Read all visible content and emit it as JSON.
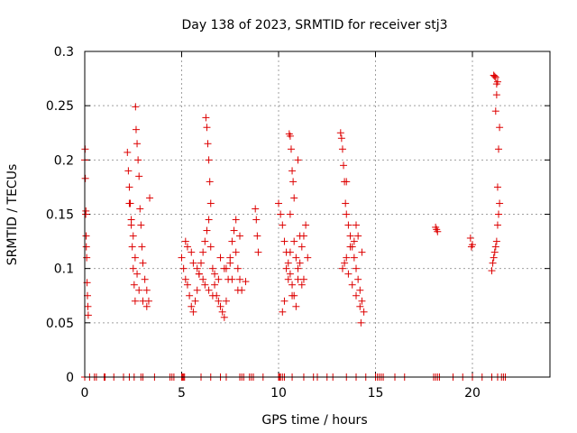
{
  "chart_data": {
    "type": "scatter",
    "title": "Day 138 of 2023, SRMTID for receiver stj3",
    "xlabel": "GPS time / hours",
    "ylabel": "SRMTID / TECUs",
    "xlim": [
      0,
      24
    ],
    "ylim": [
      0,
      0.3
    ],
    "xticks": [
      0,
      5,
      10,
      15,
      20
    ],
    "yticks": [
      0,
      0.05,
      0.1,
      0.15,
      0.2,
      0.25,
      0.3
    ],
    "ytick_labels": [
      "0",
      "0.05",
      "0.1",
      "0.15",
      "0.2",
      "0.25",
      "0.3"
    ],
    "grid": true,
    "marker": "+",
    "color": "#dd0000",
    "series": [
      {
        "x": [
          0.0,
          0.02,
          0.03,
          0.05,
          0.06,
          0.07,
          0.08,
          0.1,
          0.12,
          0.14,
          0.16,
          0.18,
          2.2,
          2.25,
          2.3,
          2.35,
          2.4,
          2.45,
          2.5,
          2.55,
          2.6,
          2.62,
          2.65,
          2.7,
          2.75,
          2.8,
          2.85,
          2.9,
          2.95,
          3.0,
          3.1,
          3.2,
          3.3,
          3.35,
          2.3,
          2.4,
          2.5,
          2.6,
          2.7,
          2.8,
          3.0,
          3.2,
          5.0,
          5.1,
          5.2,
          5.3,
          5.4,
          5.5,
          5.6,
          5.7,
          5.8,
          5.9,
          6.0,
          6.1,
          6.2,
          6.3,
          6.4,
          6.5,
          6.6,
          6.7,
          6.8,
          6.9,
          7.0,
          7.1,
          7.2,
          7.3,
          7.4,
          7.5,
          7.6,
          7.7,
          7.8,
          7.9,
          8.0,
          8.1,
          8.3,
          5.2,
          5.5,
          5.8,
          6.1,
          6.4,
          6.7,
          7.0,
          7.3,
          7.6,
          7.9,
          6.25,
          6.3,
          6.35,
          6.4,
          6.45,
          6.5,
          5.3,
          5.6,
          5.9,
          6.2,
          6.6,
          6.9,
          7.2,
          7.5,
          7.8,
          8.0,
          8.8,
          8.85,
          8.9,
          8.95,
          10.0,
          10.1,
          10.2,
          10.3,
          10.4,
          10.5,
          10.6,
          10.7,
          10.8,
          10.9,
          11.0,
          11.1,
          11.2,
          11.3,
          11.4,
          11.5,
          10.55,
          10.6,
          10.65,
          10.7,
          10.75,
          10.8,
          10.4,
          10.6,
          10.8,
          11.0,
          11.2,
          10.3,
          10.5,
          10.7,
          10.9,
          11.1,
          11.3,
          10.2,
          10.6,
          11.0,
          13.2,
          13.25,
          13.3,
          13.35,
          13.4,
          13.45,
          13.5,
          13.6,
          13.7,
          13.8,
          13.9,
          14.0,
          14.1,
          14.2,
          14.3,
          14.4,
          13.3,
          13.5,
          13.7,
          13.9,
          14.1,
          14.3,
          13.4,
          13.6,
          13.8,
          14.0,
          14.2,
          13.5,
          14.0,
          14.25,
          18.1,
          18.15,
          18.2,
          19.9,
          19.95,
          20.0,
          21.0,
          21.05,
          21.1,
          21.15,
          21.2,
          21.25,
          21.3,
          21.35,
          21.4,
          21.3,
          21.35,
          21.4,
          21.2,
          21.25,
          21.3,
          21.1,
          21.15,
          21.2,
          21.25
        ],
        "y": [
          0.2,
          0.21,
          0.183,
          0.15,
          0.153,
          0.13,
          0.12,
          0.11,
          0.087,
          0.075,
          0.065,
          0.057,
          0.207,
          0.19,
          0.175,
          0.16,
          0.145,
          0.12,
          0.1,
          0.085,
          0.07,
          0.249,
          0.228,
          0.215,
          0.2,
          0.185,
          0.155,
          0.14,
          0.12,
          0.105,
          0.09,
          0.08,
          0.07,
          0.165,
          0.16,
          0.14,
          0.13,
          0.11,
          0.095,
          0.08,
          0.07,
          0.065,
          0.11,
          0.1,
          0.09,
          0.085,
          0.075,
          0.065,
          0.06,
          0.07,
          0.08,
          0.095,
          0.105,
          0.115,
          0.125,
          0.135,
          0.145,
          0.12,
          0.1,
          0.085,
          0.075,
          0.07,
          0.065,
          0.06,
          0.055,
          0.07,
          0.09,
          0.11,
          0.125,
          0.135,
          0.145,
          0.1,
          0.09,
          0.08,
          0.088,
          0.125,
          0.115,
          0.1,
          0.09,
          0.08,
          0.095,
          0.11,
          0.1,
          0.09,
          0.08,
          0.239,
          0.23,
          0.215,
          0.2,
          0.18,
          0.16,
          0.12,
          0.105,
          0.095,
          0.085,
          0.075,
          0.09,
          0.1,
          0.105,
          0.115,
          0.13,
          0.155,
          0.145,
          0.13,
          0.115,
          0.16,
          0.15,
          0.14,
          0.125,
          0.115,
          0.105,
          0.095,
          0.085,
          0.075,
          0.065,
          0.09,
          0.105,
          0.12,
          0.13,
          0.14,
          0.11,
          0.224,
          0.222,
          0.21,
          0.19,
          0.18,
          0.165,
          0.1,
          0.115,
          0.125,
          0.1,
          0.085,
          0.07,
          0.09,
          0.075,
          0.11,
          0.13,
          0.09,
          0.06,
          0.15,
          0.2,
          0.225,
          0.22,
          0.21,
          0.195,
          0.18,
          0.16,
          0.15,
          0.14,
          0.13,
          0.12,
          0.11,
          0.1,
          0.09,
          0.08,
          0.07,
          0.06,
          0.1,
          0.11,
          0.12,
          0.125,
          0.13,
          0.115,
          0.105,
          0.095,
          0.085,
          0.075,
          0.065,
          0.18,
          0.14,
          0.05,
          0.138,
          0.136,
          0.134,
          0.128,
          0.12,
          0.122,
          0.098,
          0.105,
          0.11,
          0.115,
          0.12,
          0.125,
          0.14,
          0.15,
          0.16,
          0.175,
          0.21,
          0.23,
          0.245,
          0.26,
          0.272,
          0.278,
          0.277,
          0.276,
          0.27
        ],
        "zero_x": [
          0.0,
          0.25,
          0.5,
          0.6,
          1.0,
          1.05,
          1.5,
          2.0,
          2.3,
          2.55,
          2.9,
          3.0,
          3.6,
          4.4,
          4.5,
          4.6,
          5.0,
          5.05,
          5.1,
          5.15,
          6.0,
          6.5,
          7.0,
          7.3,
          8.0,
          8.1,
          8.2,
          8.5,
          8.6,
          8.7,
          9.2,
          10.0,
          10.05,
          10.1,
          10.2,
          10.3,
          10.7,
          11.3,
          11.8,
          12.0,
          12.5,
          12.8,
          13.5,
          14.0,
          14.5,
          15.0,
          15.1,
          15.2,
          15.3,
          15.4,
          16.0,
          16.5,
          18.0,
          18.1,
          18.2,
          18.3,
          19.0,
          19.5,
          20.0,
          20.5,
          21.0,
          21.3,
          21.5,
          21.6,
          21.7
        ]
      }
    ]
  }
}
